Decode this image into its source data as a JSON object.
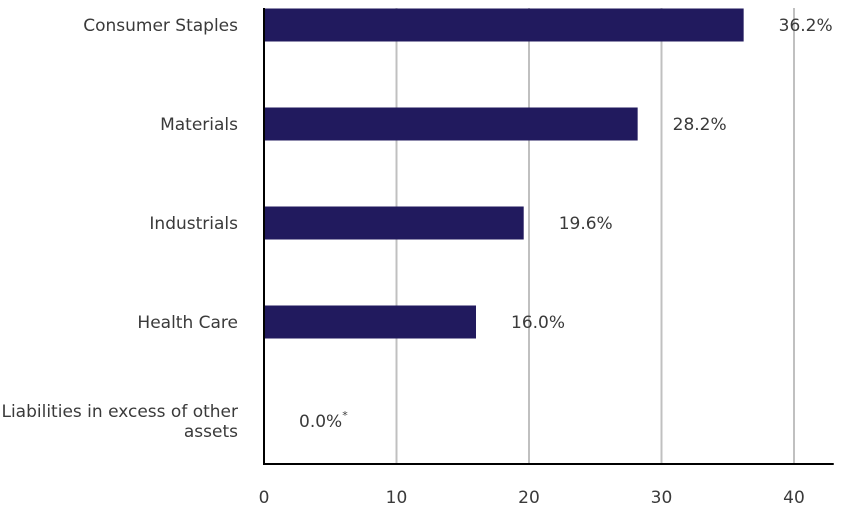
{
  "chart_data": {
    "type": "bar",
    "orientation": "horizontal",
    "categories": [
      [
        "Consumer Staples"
      ],
      [
        "Materials"
      ],
      [
        "Industrials"
      ],
      [
        "Health Care"
      ],
      [
        "Liabilities in excess of other",
        "assets"
      ]
    ],
    "values": [
      36.2,
      28.2,
      19.6,
      16.0,
      0.0
    ],
    "value_labels": [
      "36.2%",
      "28.2%",
      "19.6%",
      "16.0%",
      "0.0%"
    ],
    "value_label_notes": [
      "",
      "",
      "",
      "",
      "*"
    ],
    "x_ticks": [
      0,
      10,
      20,
      30,
      40
    ],
    "xlim": [
      0,
      43
    ],
    "grid": "vertical",
    "colors": {
      "bar": "#211a5e",
      "grid": "#c0c0c0",
      "axis": "#000000",
      "text": "#3a3a3a"
    }
  }
}
